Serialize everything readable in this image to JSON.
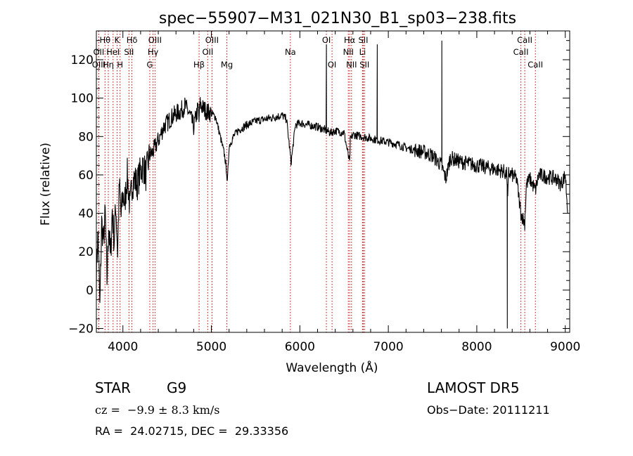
{
  "chart_data": {
    "type": "line",
    "title": "spec−55907−M31_021N30_B1_sp03−238.fits",
    "xlabel": "Wavelength (Å)",
    "ylabel": "Flux (relative)",
    "xlim": [
      3700,
      9050
    ],
    "ylim": [
      -22,
      135
    ],
    "xticks": [
      4000,
      5000,
      6000,
      7000,
      8000,
      9000
    ],
    "xtick_labels": [
      "4000",
      "5000",
      "6000",
      "7000",
      "8000",
      "9000"
    ],
    "yticks": [
      -20,
      0,
      20,
      40,
      60,
      80,
      100,
      120
    ],
    "ytick_labels": [
      "−20",
      "0",
      "20",
      "40",
      "60",
      "80",
      "100",
      "120"
    ],
    "grid": false,
    "series": [
      {
        "x": [
          3700,
          3720,
          3740,
          3760,
          3780,
          3800,
          3820,
          3840,
          3860,
          3880,
          3900,
          3920,
          3940,
          3960,
          3980,
          4000,
          4020,
          4050,
          4080,
          4100,
          4130,
          4160,
          4200,
          4230,
          4260,
          4300,
          4340,
          4380,
          4420,
          4460,
          4500,
          4550,
          4600,
          4650,
          4700,
          4750,
          4800,
          4850,
          4861,
          4870,
          4900,
          4950,
          5000,
          5050,
          5100,
          5150,
          5172,
          5180,
          5200,
          5250,
          5300,
          5400,
          5500,
          5600,
          5700,
          5800,
          5850,
          5893,
          5900,
          5950,
          6000,
          6100,
          6200,
          6250,
          6300,
          6350,
          6400,
          6500,
          6563,
          6570,
          6600,
          6700,
          6800,
          6900,
          7000,
          7100,
          7200,
          7300,
          7400,
          7500,
          7600,
          7650,
          7700,
          7800,
          7900,
          8000,
          8100,
          8200,
          8300,
          8340,
          8350,
          8360,
          8400,
          8450,
          8498,
          8542,
          8560,
          8600,
          8662,
          8700,
          8800,
          8900,
          8950,
          9000,
          9030
        ],
        "y": [
          10,
          30,
          -10,
          35,
          25,
          40,
          5,
          35,
          15,
          42,
          25,
          45,
          20,
          55,
          38,
          50,
          45,
          60,
          42,
          55,
          58,
          55,
          62,
          65,
          60,
          70,
          72,
          76,
          80,
          85,
          87,
          90,
          92,
          93,
          96,
          92,
          85,
          95,
          88,
          97,
          95,
          93,
          92,
          90,
          80,
          70,
          62,
          55,
          75,
          80,
          83,
          86,
          88,
          89,
          90,
          91,
          89,
          70,
          66,
          86,
          87,
          86,
          85,
          84,
          83,
          82,
          83,
          82,
          66,
          78,
          81,
          80,
          79,
          78,
          77,
          76,
          74,
          73,
          72,
          70,
          65,
          58,
          69,
          67,
          66,
          65,
          64,
          63,
          62,
          60,
          48,
          61,
          60,
          58,
          40,
          35,
          55,
          58,
          52,
          60,
          59,
          58,
          55,
          60,
          40
        ]
      }
    ],
    "spikes": [
      {
        "x": 6300,
        "y": 128
      },
      {
        "x": 6875,
        "y": 128
      },
      {
        "x": 7605,
        "y": 130
      },
      {
        "x": 8345,
        "y": -20
      }
    ],
    "lines": [
      {
        "label": "Hθ",
        "x": 3798,
        "row": 0
      },
      {
        "label": "K",
        "x": 3934,
        "row": 0
      },
      {
        "label": "Hδ",
        "x": 4102,
        "row": 0
      },
      {
        "label": "OIII",
        "x": 4363,
        "row": 0
      },
      {
        "label": "OIII",
        "x": 5007,
        "row": 0
      },
      {
        "label": "OI",
        "x": 6300,
        "row": 0
      },
      {
        "label": "Hα",
        "x": 6563,
        "row": 0
      },
      {
        "label": "SII",
        "x": 6717,
        "row": 0
      },
      {
        "label": "CaII",
        "x": 8542,
        "row": 0
      },
      {
        "label": "OII",
        "x": 3727,
        "row": 1
      },
      {
        "label": "HeI",
        "x": 3889,
        "row": 1
      },
      {
        "label": "SII",
        "x": 4069,
        "row": 1
      },
      {
        "label": "Hγ",
        "x": 4341,
        "row": 1
      },
      {
        "label": "OII",
        "x": 4959,
        "row": 1
      },
      {
        "label": "Na",
        "x": 5893,
        "row": 1
      },
      {
        "label": "NII",
        "x": 6548,
        "row": 1
      },
      {
        "label": "Li",
        "x": 6708,
        "row": 1
      },
      {
        "label": "CaII",
        "x": 8498,
        "row": 1
      },
      {
        "label": "OIII",
        "x": 3727,
        "row": 2
      },
      {
        "label": "Hη",
        "x": 3835,
        "row": 2
      },
      {
        "label": "H",
        "x": 3968,
        "row": 2
      },
      {
        "label": "G",
        "x": 4304,
        "row": 2
      },
      {
        "label": "Hβ",
        "x": 4861,
        "row": 2
      },
      {
        "label": "Mg",
        "x": 5175,
        "row": 2
      },
      {
        "label": "OI",
        "x": 6364,
        "row": 2
      },
      {
        "label": "NII",
        "x": 6584,
        "row": 2
      },
      {
        "label": "SII",
        "x": 6731,
        "row": 2
      },
      {
        "label": "CaII",
        "x": 8662,
        "row": 2
      }
    ],
    "colors": {
      "spectrum": "#000000",
      "line_markers": "#cc0000",
      "axes": "#000000"
    }
  },
  "info": {
    "object_class": "STAR",
    "subclass": "G9",
    "redshift": "cz =  −9.9 ± 8.3 km/s",
    "coords": "RA =  24.02715, DEC =  29.33356",
    "survey": "LAMOST DR5",
    "obs_date": "Obs−Date: 20111211"
  }
}
